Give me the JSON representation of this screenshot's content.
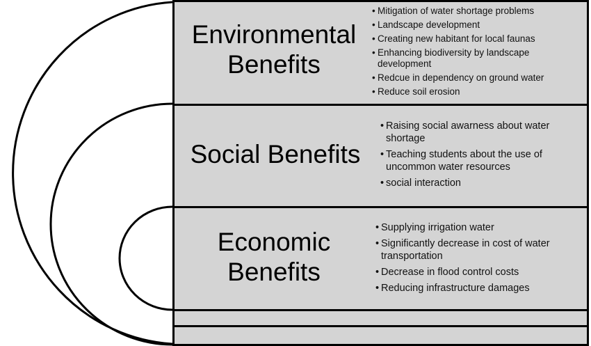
{
  "sections": [
    {
      "id": "environmental",
      "title_lines": [
        "Environmental",
        "Benefits"
      ],
      "bullets": [
        "Mitigation of water shortage problems",
        "Landscape development",
        "Creating new habitant for local faunas",
        "Enhancing biodiversity by landscape development",
        "Redcue in dependency on ground water",
        "Reduce soil erosion"
      ]
    },
    {
      "id": "social",
      "title_lines": [
        "Social Benefits"
      ],
      "bullets": [
        "Raising social awarness about water shortage",
        "Teaching students about the use of uncommon water resources",
        "social interaction"
      ]
    },
    {
      "id": "economic",
      "title_lines": [
        "Economic",
        "Benefits"
      ],
      "bullets": [
        "Supplying irrigation water",
        "Significantly decrease in cost of water transportation",
        "Decrease in flood control costs",
        "Reducing infrastructure damages"
      ]
    }
  ],
  "colors": {
    "band_fill": "#d4d4d4",
    "outline": "#000000",
    "background": "#ffffff"
  }
}
